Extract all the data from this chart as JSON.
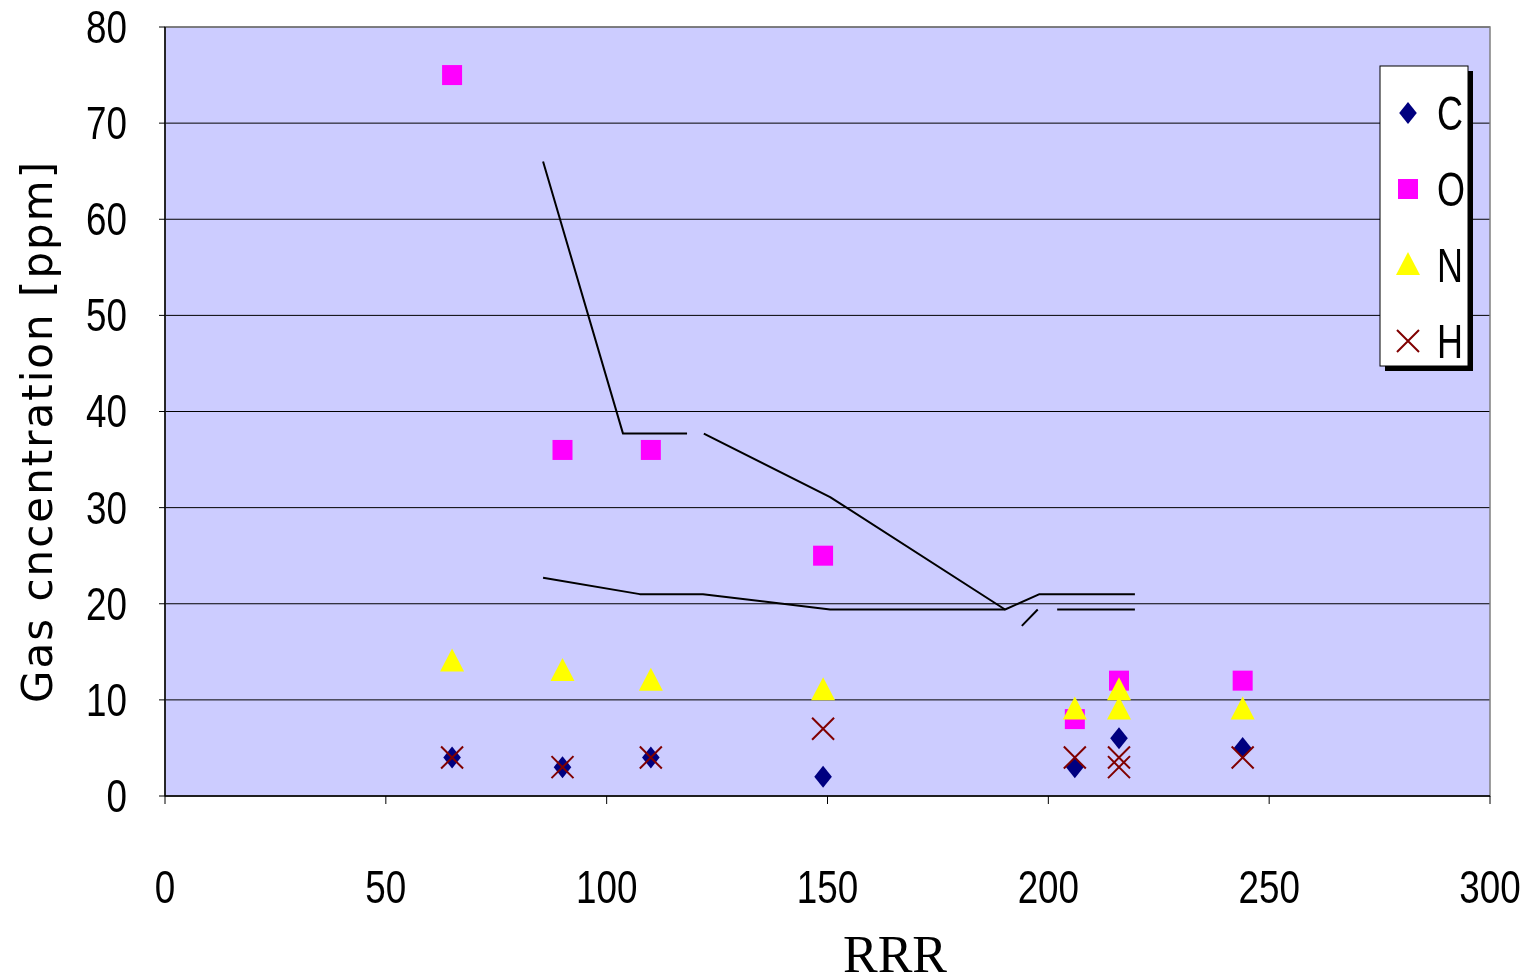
{
  "chart_data": {
    "type": "scatter",
    "xlabel": "RRR",
    "ylabel": "Gas cncentration [ppm]",
    "xlim": [
      0,
      300
    ],
    "xticks": [
      0,
      50,
      100,
      150,
      200,
      250,
      300
    ],
    "ylim": [
      0,
      80
    ],
    "yticks": [
      0,
      10,
      20,
      30,
      40,
      50,
      60,
      70,
      80
    ],
    "grid": "y",
    "legend": "top right",
    "series": [
      {
        "name": "C",
        "color": "#000080",
        "marker": "diamond",
        "x": [
          65,
          90,
          110,
          149,
          206,
          216,
          244
        ],
        "values": [
          4,
          3,
          4,
          2,
          3,
          6,
          5
        ]
      },
      {
        "name": "O",
        "color": "#ff00ff",
        "marker": "square",
        "x": [
          65,
          90,
          110,
          149,
          206,
          216,
          244
        ],
        "values": [
          75,
          36,
          36,
          25,
          8,
          12,
          12
        ]
      },
      {
        "name": "N",
        "color": "#ffff00",
        "marker": "triangle",
        "x": [
          65,
          90,
          110,
          149,
          206,
          216,
          216,
          244
        ],
        "values": [
          14,
          13,
          12,
          11,
          9,
          11,
          9,
          9
        ]
      },
      {
        "name": "H",
        "color": "#800000",
        "marker": "cross",
        "x": [
          65,
          90,
          110,
          149,
          206,
          216,
          216,
          244
        ],
        "values": [
          4,
          3,
          4,
          7,
          4,
          4,
          3,
          4
        ]
      },
      {
        "type": "line",
        "color": "#000000",
        "marker": "none",
        "x": [
          85.6,
          103.7,
          118.2,
          120,
          122,
          150.6,
          190.2,
          198,
          219.6
        ],
        "values": [
          66,
          37.7,
          37.7,
          null,
          37.7,
          31.1,
          19.4,
          21,
          21
        ]
      },
      {
        "type": "line",
        "color": "#000000",
        "marker": "none",
        "x": [
          85.6,
          107.5,
          121.8,
          150.6,
          190.2,
          192,
          194,
          197.6,
          200,
          202,
          219.6
        ],
        "values": [
          22.7,
          21,
          21,
          19.4,
          19.4,
          null,
          17.7,
          19.4,
          null,
          19.4,
          19.4
        ]
      }
    ]
  }
}
